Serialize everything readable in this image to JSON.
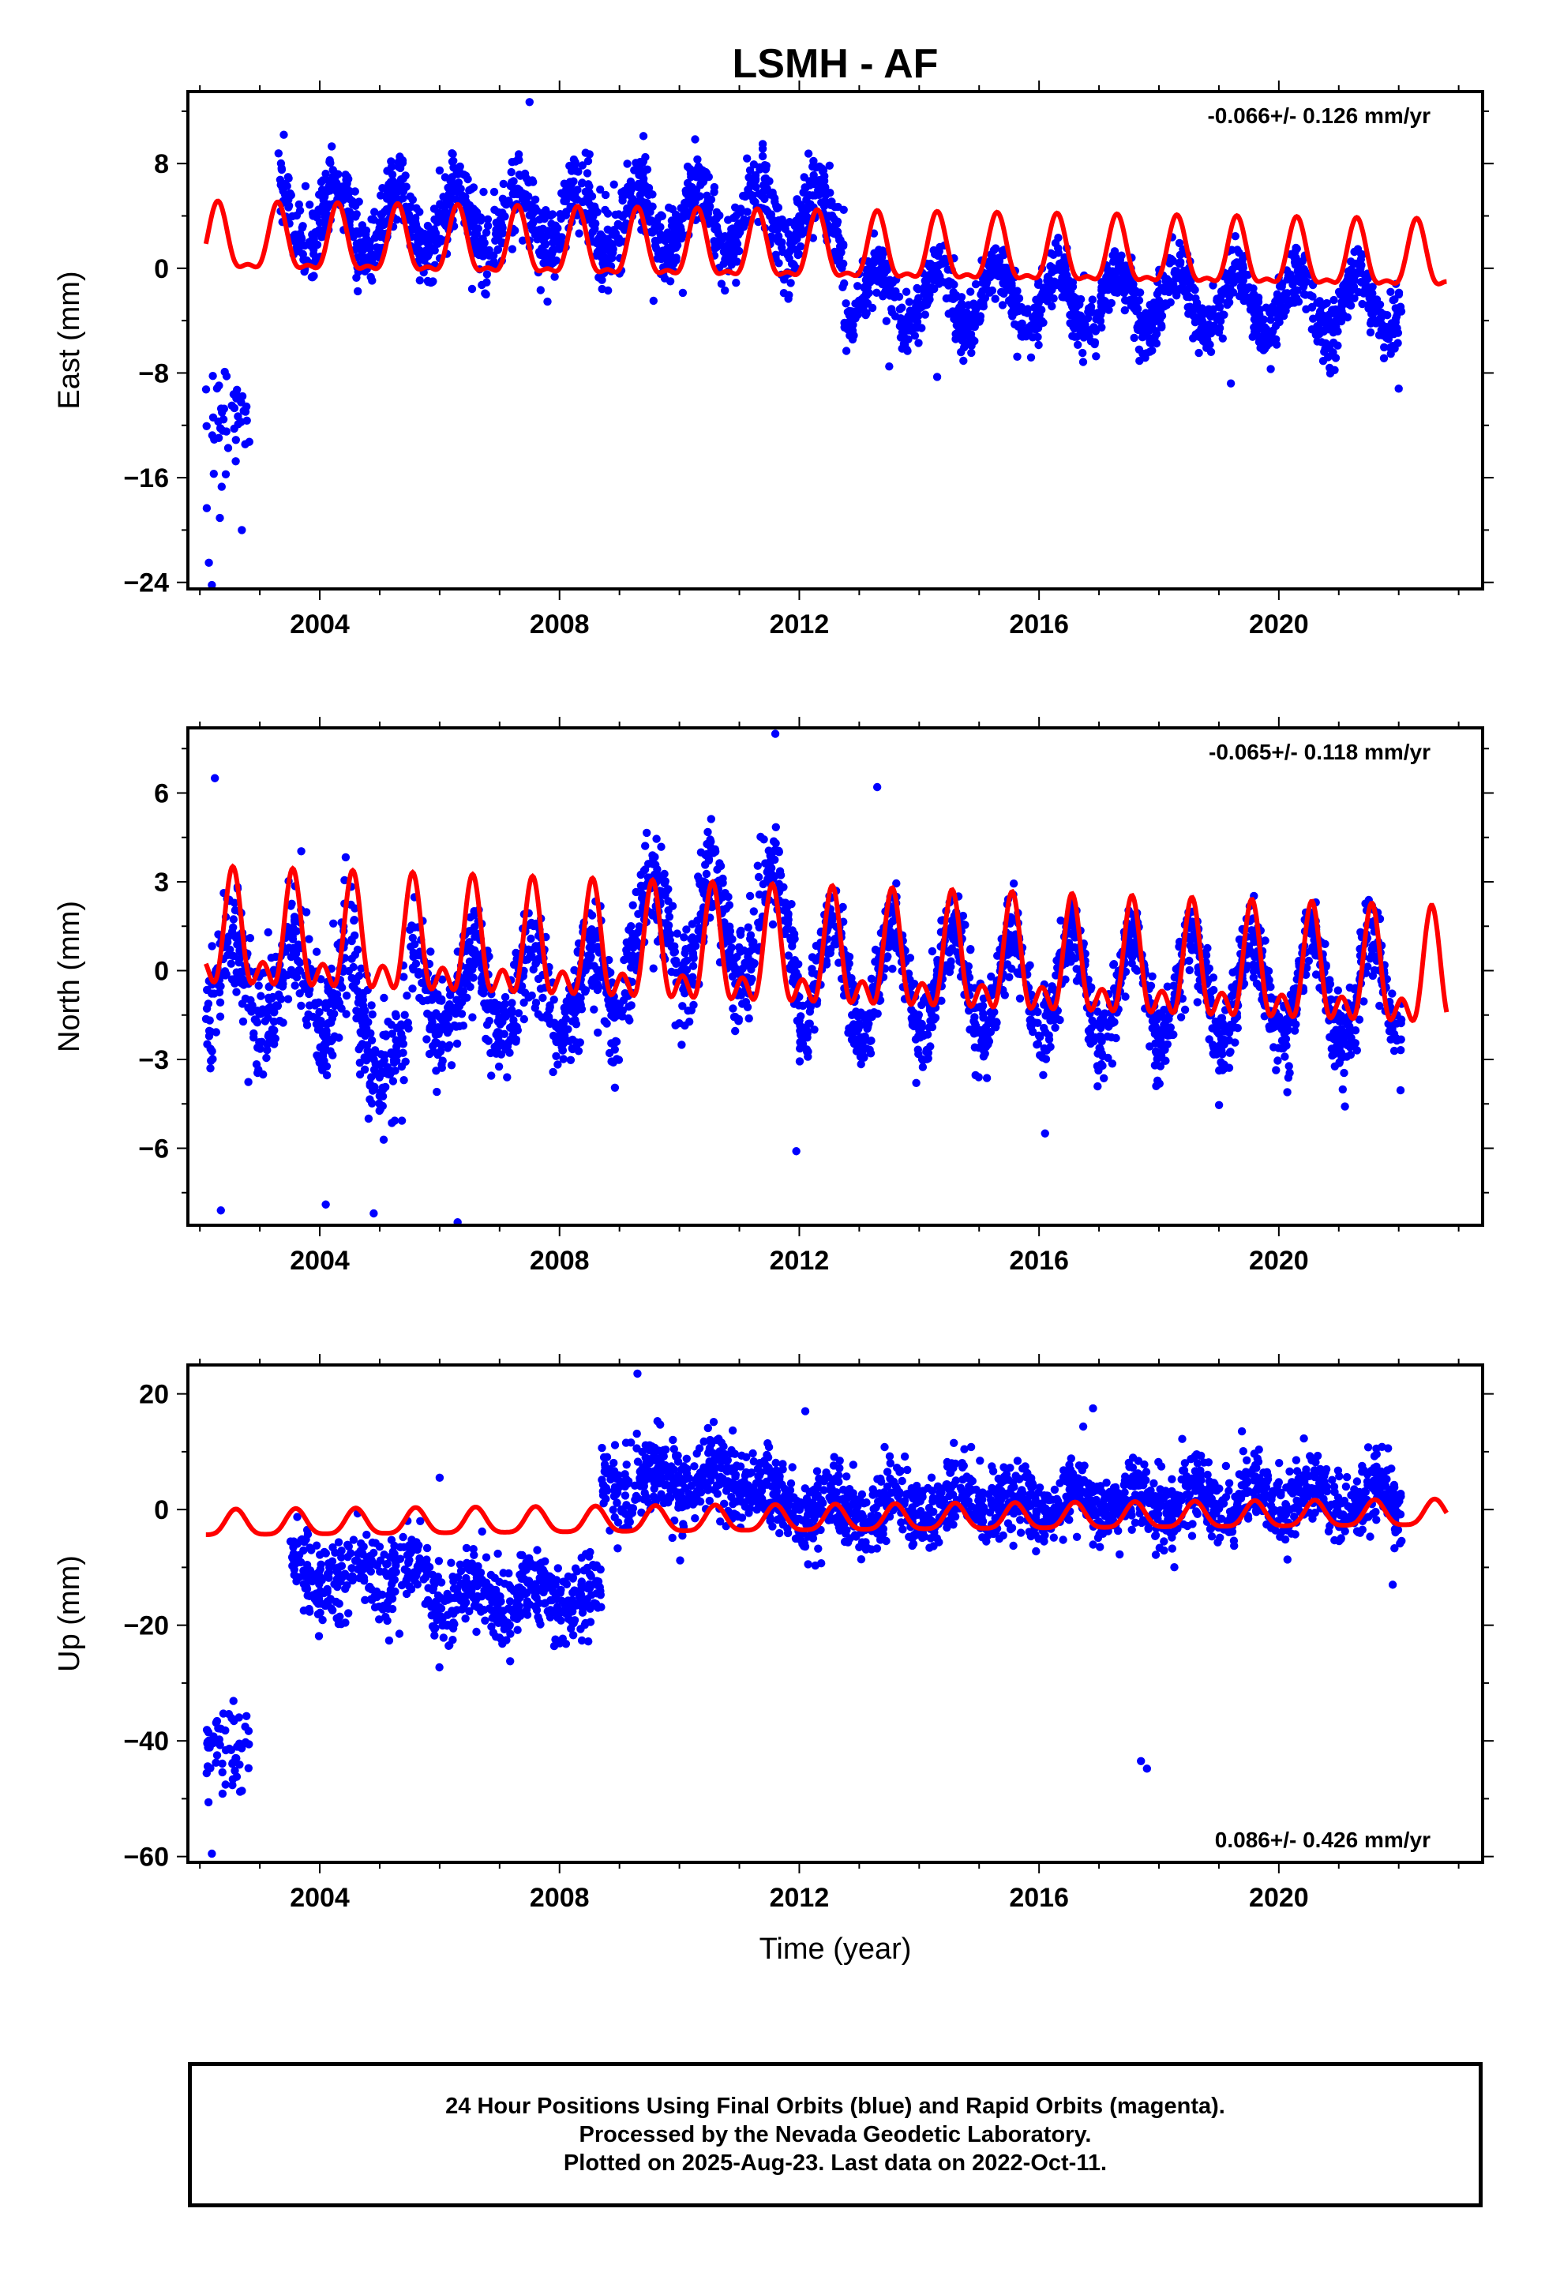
{
  "chart_data": [
    {
      "type": "scatter",
      "title": "LSMH - AF",
      "ylabel": "East (mm)",
      "xlabel": "",
      "rate_text": "-0.066+/- 0.126 mm/yr",
      "xlim": [
        2001.8,
        2023.4
      ],
      "ylim": [
        -24.5,
        13.5
      ],
      "xticks": [
        2004,
        2008,
        2012,
        2016,
        2020
      ],
      "yticks": [
        8,
        0,
        -8,
        -16,
        -24
      ],
      "grid": false,
      "series": [
        {
          "kind": "points",
          "color": "#0000ff",
          "segments": [
            {
              "x0": 2002.1,
              "x1": 2002.85,
              "baseline": -11.5,
              "trend": 0,
              "amp": 0,
              "spread": 4.5,
              "density": 60
            },
            {
              "x0": 2003.3,
              "x1": 2012.75,
              "baseline": 3.8,
              "trend": 0,
              "amp": 2.5,
              "spread": 2.6,
              "density": 150
            },
            {
              "x0": 2012.75,
              "x1": 2022.05,
              "baseline": -2.2,
              "trend": -0.05,
              "amp": 2.4,
              "spread": 2.0,
              "density": 150
            }
          ],
          "outliers": [
            [
              2003.4,
              10.2
            ],
            [
              2007.5,
              12.7
            ],
            [
              2009.4,
              10.1
            ],
            [
              2002.2,
              -24.2
            ],
            [
              2002.15,
              -22.5
            ],
            [
              2002.7,
              -20
            ],
            [
              2014.3,
              -8.3
            ],
            [
              2019.2,
              -8.8
            ],
            [
              2022.0,
              -9.2
            ],
            [
              2013.5,
              -7.5
            ]
          ]
        },
        {
          "kind": "fit",
          "color": "#ff0000",
          "x0": 2002.1,
          "x1": 2022.8,
          "offset": 1.2,
          "trend": -0.066,
          "annual_amp": 2.4,
          "semiannual_amp": 0.9,
          "phase_peak": 0.3
        }
      ]
    },
    {
      "type": "scatter",
      "title": "",
      "ylabel": "North (mm)",
      "xlabel": "",
      "rate_text": "-0.065+/- 0.118 mm/yr",
      "xlim": [
        2001.8,
        2023.4
      ],
      "ylim": [
        -8.6,
        8.2
      ],
      "xticks": [
        2004,
        2008,
        2012,
        2016,
        2020
      ],
      "yticks": [
        6,
        3,
        0,
        -3,
        -6
      ],
      "grid": false,
      "series": [
        {
          "kind": "points",
          "color": "#0000ff",
          "segments": [
            {
              "x0": 2002.1,
              "x1": 2004.6,
              "baseline": -0.5,
              "trend": 0,
              "amp": 1.5,
              "spread": 1.8,
              "density": 150
            },
            {
              "x0": 2004.6,
              "x1": 2005.5,
              "baseline": -2.5,
              "trend": 0,
              "amp": 1.0,
              "spread": 1.8,
              "density": 150
            },
            {
              "x0": 2005.5,
              "x1": 2009.0,
              "baseline": -0.8,
              "trend": 0,
              "amp": 1.5,
              "spread": 1.5,
              "density": 150
            },
            {
              "x0": 2009.0,
              "x1": 2012.0,
              "baseline": 1.3,
              "trend": 0,
              "amp": 1.8,
              "spread": 1.6,
              "density": 150
            },
            {
              "x0": 2012.0,
              "x1": 2022.05,
              "baseline": -0.3,
              "trend": -0.05,
              "amp": 1.8,
              "spread": 1.2,
              "density": 150
            }
          ],
          "outliers": [
            [
              2002.25,
              6.5
            ],
            [
              2002.35,
              -8.1
            ],
            [
              2004.1,
              -7.9
            ],
            [
              2004.9,
              -8.2
            ],
            [
              2006.3,
              -8.5
            ],
            [
              2011.6,
              8.0
            ],
            [
              2011.95,
              -6.1
            ],
            [
              2016.1,
              -5.5
            ],
            [
              2013.3,
              6.2
            ]
          ]
        },
        {
          "kind": "fit",
          "color": "#ff0000",
          "x0": 2002.1,
          "x1": 2022.8,
          "offset": 0.3,
          "trend": -0.065,
          "annual_amp": 1.6,
          "semiannual_amp": 1.0,
          "phase_peak": 0.55
        }
      ]
    },
    {
      "type": "scatter",
      "title": "",
      "ylabel": "Up (mm)",
      "xlabel": "Time (year)",
      "rate_text": "0.086+/- 0.426 mm/yr",
      "xlim": [
        2001.8,
        2023.4
      ],
      "ylim": [
        -61,
        25
      ],
      "xticks": [
        2004,
        2008,
        2012,
        2016,
        2020
      ],
      "yticks": [
        20,
        0,
        -20,
        -40,
        -60
      ],
      "grid": false,
      "series": [
        {
          "kind": "points",
          "color": "#0000ff",
          "segments": [
            {
              "x0": 2002.1,
              "x1": 2002.85,
              "baseline": -41,
              "trend": 0,
              "amp": 0,
              "spread": 7,
              "density": 80
            },
            {
              "x0": 2003.5,
              "x1": 2005.8,
              "baseline": -11,
              "trend": 0,
              "amp": 2.5,
              "spread": 6,
              "density": 120
            },
            {
              "x0": 2005.8,
              "x1": 2008.7,
              "baseline": -15,
              "trend": 0,
              "amp": 2.5,
              "spread": 6,
              "density": 140
            },
            {
              "x0": 2008.7,
              "x1": 2011.5,
              "baseline": 5,
              "trend": 0,
              "amp": 2.5,
              "spread": 6,
              "density": 150
            },
            {
              "x0": 2011.5,
              "x1": 2013.8,
              "baseline": 0,
              "trend": 0,
              "amp": 2.5,
              "spread": 6,
              "density": 140
            },
            {
              "x0": 2013.8,
              "x1": 2022.05,
              "baseline": 1,
              "trend": 0.1,
              "amp": 2.5,
              "spread": 5.5,
              "density": 150
            }
          ],
          "outliers": [
            [
              2002.2,
              -59.5
            ],
            [
              2009.3,
              23.5
            ],
            [
              2017.7,
              -43.5
            ],
            [
              2017.8,
              -44.8
            ],
            [
              2012.1,
              17
            ],
            [
              2016.9,
              17.5
            ],
            [
              2006.0,
              5.5
            ],
            [
              2021.9,
              -13
            ]
          ]
        },
        {
          "kind": "fit",
          "color": "#ff0000",
          "x0": 2002.1,
          "x1": 2022.8,
          "offset": -1.8,
          "trend": 0.086,
          "annual_amp": 2.2,
          "semiannual_amp": 0.5,
          "phase_peak": 0.6
        }
      ]
    }
  ],
  "footer": {
    "line1": "24 Hour Positions Using Final Orbits (blue) and Rapid Orbits (magenta).",
    "line2": "Processed by the Nevada Geodetic Laboratory.",
    "line3": "Plotted on 2025-Aug-23. Last data on 2022-Oct-11."
  }
}
